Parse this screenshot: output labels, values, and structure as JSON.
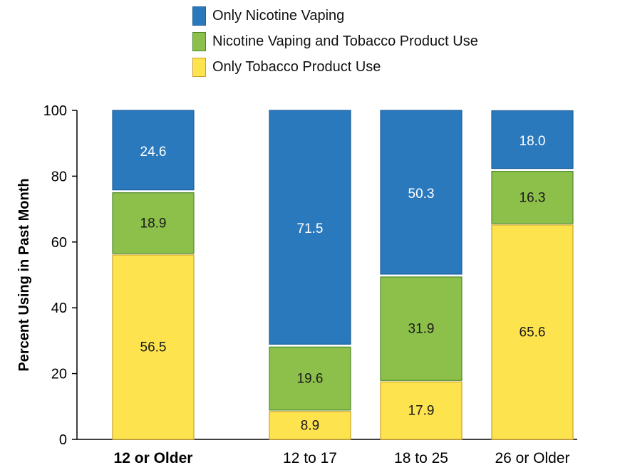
{
  "chart_data": {
    "type": "bar",
    "stacked": true,
    "title": "",
    "xlabel": "",
    "ylabel": "Percent Using in Past Month",
    "ylim": [
      0,
      100
    ],
    "yticks": [
      0,
      20,
      40,
      60,
      80,
      100
    ],
    "categories": [
      "12 or Older",
      "12 to 17",
      "18 to 25",
      "26 or Older"
    ],
    "category_bold": [
      true,
      false,
      false,
      false
    ],
    "series": [
      {
        "name": "Only Tobacco Product Use",
        "color": "#fde34e",
        "stroke": "#c9a227",
        "label_color": "#1a1a1a",
        "values": [
          56.5,
          8.9,
          17.9,
          65.6
        ]
      },
      {
        "name": "Nicotine Vaping and Tobacco Product Use",
        "color": "#8cc04a",
        "stroke": "#4f8a2b",
        "label_color": "#1a1a1a",
        "values": [
          18.9,
          19.6,
          31.9,
          16.3
        ]
      },
      {
        "name": "Only Nicotine Vaping",
        "color": "#2b79bd",
        "stroke": "#1d5f99",
        "label_color": "#ffffff",
        "values": [
          24.6,
          71.5,
          50.3,
          18.0
        ]
      }
    ],
    "legend_order": [
      2,
      1,
      0
    ],
    "legend_position": "top-center",
    "grid": false
  }
}
